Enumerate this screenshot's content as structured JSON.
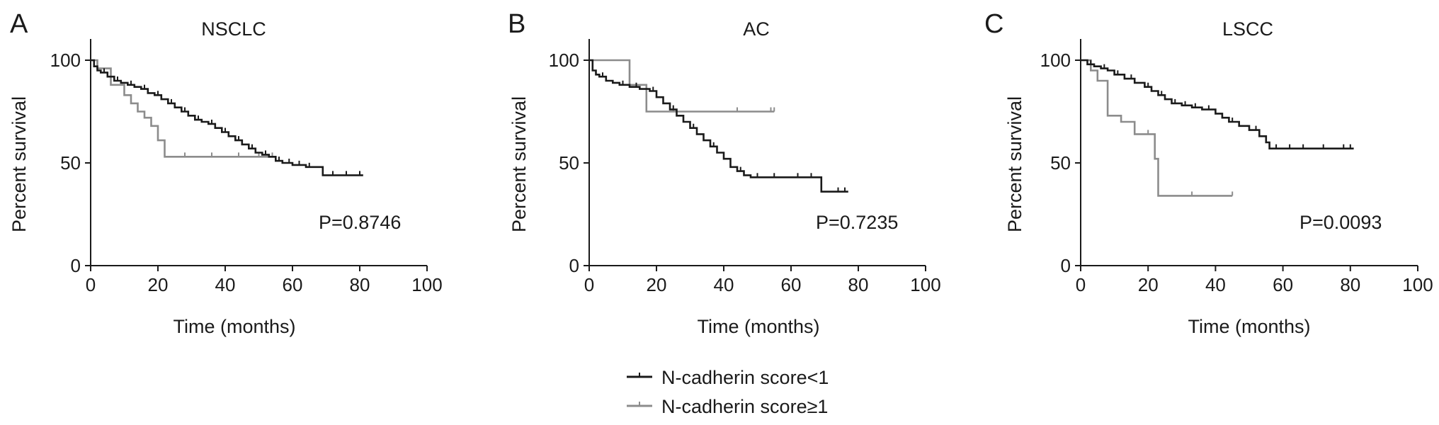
{
  "chart_data": [
    {
      "type": "line",
      "panel_label": "A",
      "title": "NSCLC",
      "xlabel": "Time (months)",
      "ylabel": "Percent survival",
      "xlim": [
        0,
        100
      ],
      "ylim": [
        0,
        100
      ],
      "xticks": [
        0,
        20,
        40,
        60,
        80,
        100
      ],
      "yticks": [
        0,
        50,
        100
      ],
      "annotation": "P=0.8746",
      "series": [
        {
          "name": "N-cadherin score<1",
          "color": "#1a1a1a",
          "x": [
            0,
            1,
            2,
            3,
            5,
            7,
            9,
            11,
            13,
            15,
            17,
            19,
            21,
            23,
            25,
            27,
            29,
            31,
            33,
            35,
            37,
            39,
            41,
            43,
            45,
            47,
            49,
            51,
            53,
            55,
            57,
            60,
            64,
            68,
            69,
            75,
            81
          ],
          "y": [
            100,
            97,
            95,
            94,
            92,
            90,
            89,
            88,
            87,
            86,
            84,
            83,
            81,
            79,
            77,
            75,
            73,
            71,
            70,
            69,
            67,
            65,
            63,
            61,
            59,
            57,
            55,
            54,
            53,
            51,
            50,
            49,
            48,
            48,
            44,
            44,
            44
          ],
          "censor_x": [
            4,
            8,
            12,
            16,
            20,
            24,
            28,
            32,
            36,
            40,
            44,
            48,
            52,
            56,
            59,
            62,
            65,
            72,
            76,
            80
          ]
        },
        {
          "name": "N-cadherin score≥1",
          "color": "#8c8c8c",
          "x": [
            0,
            2,
            6,
            10,
            12,
            14,
            16,
            18,
            20,
            22,
            30,
            40,
            55
          ],
          "y": [
            100,
            96,
            88,
            83,
            79,
            75,
            72,
            68,
            61,
            53,
            53,
            53,
            53
          ],
          "censor_x": [
            28,
            36,
            44,
            50,
            54
          ]
        }
      ]
    },
    {
      "type": "line",
      "panel_label": "B",
      "title": "AC",
      "xlabel": "Time (months)",
      "ylabel": "Percent survival",
      "xlim": [
        0,
        100
      ],
      "ylim": [
        0,
        100
      ],
      "xticks": [
        0,
        20,
        40,
        60,
        80,
        100
      ],
      "yticks": [
        0,
        50,
        100
      ],
      "annotation": "P=0.7235",
      "series": [
        {
          "name": "N-cadherin score<1",
          "color": "#1a1a1a",
          "x": [
            0,
            1,
            2,
            3,
            5,
            7,
            9,
            12,
            15,
            18,
            20,
            22,
            24,
            26,
            28,
            30,
            32,
            34,
            36,
            38,
            40,
            42,
            44,
            46,
            48,
            52,
            56,
            60,
            64,
            69,
            72,
            77
          ],
          "y": [
            100,
            95,
            93,
            92,
            90,
            89,
            88,
            87,
            86,
            85,
            82,
            79,
            76,
            73,
            70,
            67,
            64,
            61,
            58,
            55,
            52,
            48,
            46,
            44,
            43,
            43,
            43,
            43,
            43,
            36,
            36,
            36
          ],
          "censor_x": [
            4,
            10,
            14,
            19,
            25,
            31,
            37,
            45,
            50,
            55,
            62,
            66,
            74,
            76
          ]
        },
        {
          "name": "N-cadherin score≥1",
          "color": "#8c8c8c",
          "x": [
            0,
            12,
            17,
            25,
            35,
            45,
            55
          ],
          "y": [
            100,
            88,
            75,
            75,
            75,
            75,
            75
          ],
          "censor_x": [
            25,
            44,
            54,
            55
          ]
        }
      ]
    },
    {
      "type": "line",
      "panel_label": "C",
      "title": "LSCC",
      "xlabel": "Time (months)",
      "ylabel": "Percent survival",
      "xlim": [
        0,
        100
      ],
      "ylim": [
        0,
        100
      ],
      "xticks": [
        0,
        20,
        40,
        60,
        80,
        100
      ],
      "yticks": [
        0,
        50,
        100
      ],
      "annotation": "P=0.0093",
      "series": [
        {
          "name": "N-cadherin score<1",
          "color": "#1a1a1a",
          "x": [
            0,
            2,
            4,
            6,
            8,
            10,
            13,
            16,
            19,
            21,
            23,
            25,
            27,
            30,
            33,
            36,
            40,
            42,
            44,
            47,
            50,
            53,
            55,
            56,
            60,
            70,
            81
          ],
          "y": [
            100,
            98,
            97,
            96,
            95,
            93,
            91,
            89,
            87,
            85,
            83,
            81,
            79,
            78,
            77,
            76,
            74,
            72,
            70,
            68,
            66,
            63,
            60,
            57,
            57,
            57,
            57
          ],
          "censor_x": [
            3,
            7,
            11,
            15,
            20,
            24,
            28,
            31,
            34,
            38,
            45,
            52,
            58,
            62,
            66,
            72,
            78,
            80
          ]
        },
        {
          "name": "N-cadherin score≥1",
          "color": "#8c8c8c",
          "x": [
            0,
            3,
            5,
            8,
            12,
            16,
            20,
            22,
            23,
            30,
            45
          ],
          "y": [
            100,
            95,
            90,
            73,
            70,
            64,
            64,
            52,
            34,
            34,
            34
          ],
          "censor_x": [
            20,
            33,
            45
          ]
        }
      ]
    }
  ],
  "legend": {
    "items": [
      {
        "label": "N-cadherin score<1",
        "color": "#1a1a1a"
      },
      {
        "label": "N-cadherin score≥1",
        "color": "#8c8c8c"
      }
    ]
  }
}
